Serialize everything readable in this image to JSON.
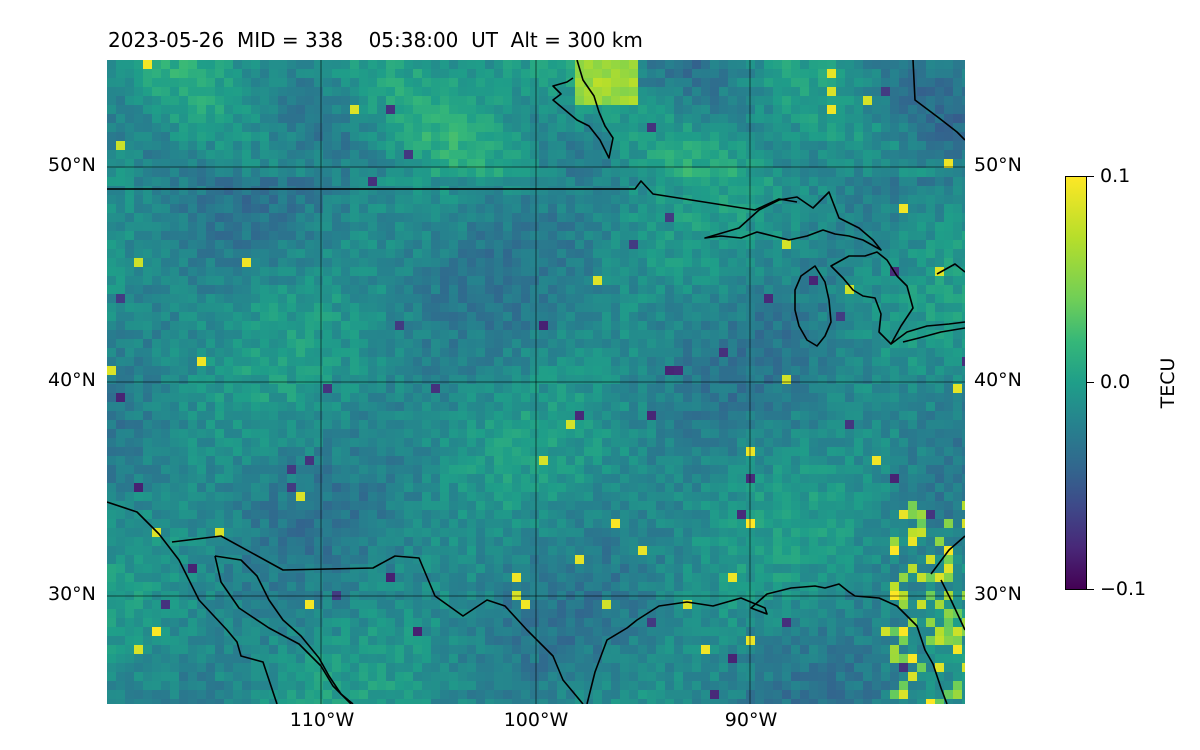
{
  "title": "2023-05-26  MID = 338    05:38:00  UT  Alt = 300 km",
  "lat_labels": [
    "50°N",
    "40°N",
    "30°N"
  ],
  "lon_labels": [
    "110°W",
    "100°W",
    "90°W"
  ],
  "map": {
    "region": "Central North America (US Great Plains, Great Lakes, northern Mexico)",
    "lon_range": [
      -120,
      -80
    ],
    "lat_range": [
      25,
      55
    ],
    "quantity": "differential TEC",
    "grid_lines": true,
    "coastline_color": "#000000"
  },
  "colorbar": {
    "label": "TECU",
    "ticks": [
      "0.1",
      "0.0",
      "−0.1"
    ],
    "range": [
      -0.1,
      0.1
    ],
    "colormap": "viridis",
    "colors": [
      "#440154",
      "#31688e",
      "#21918c",
      "#35b779",
      "#fde725"
    ]
  }
}
